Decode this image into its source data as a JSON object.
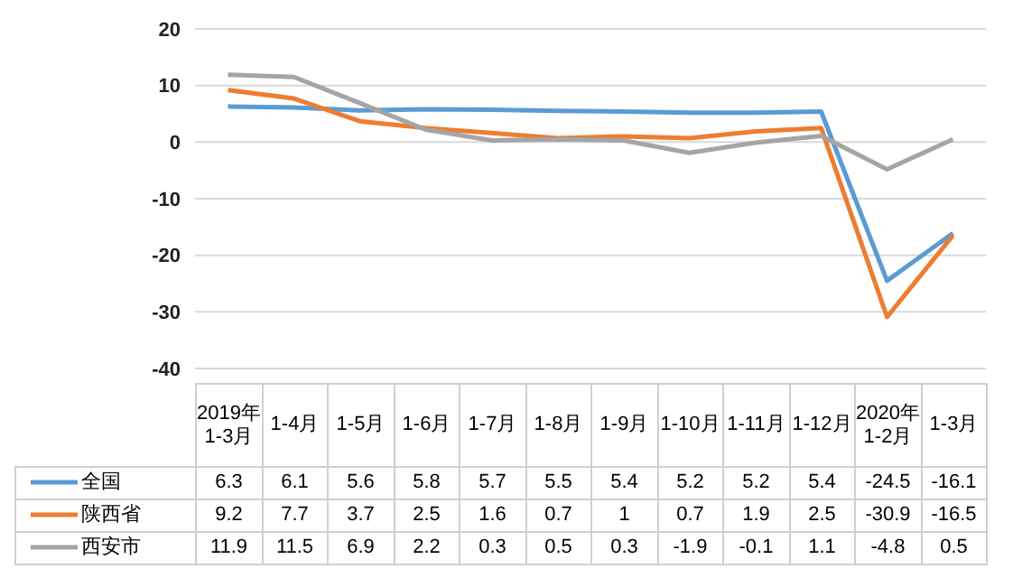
{
  "chart_data": {
    "type": "line",
    "categories": [
      "2019年1-3月",
      "1-4月",
      "1-5月",
      "1-6月",
      "1-7月",
      "1-8月",
      "1-9月",
      "1-10月",
      "1-11月",
      "1-12月",
      "2020年1-2月",
      "1-3月"
    ],
    "series": [
      {
        "name": "全国",
        "color": "#5b9bd5",
        "values": [
          6.3,
          6.1,
          5.6,
          5.8,
          5.7,
          5.5,
          5.4,
          5.2,
          5.2,
          5.4,
          -24.5,
          -16.1
        ]
      },
      {
        "name": "陕西省",
        "color": "#ed7d31",
        "values": [
          9.2,
          7.7,
          3.7,
          2.5,
          1.6,
          0.7,
          1,
          0.7,
          1.9,
          2.5,
          -30.9,
          -16.5
        ]
      },
      {
        "name": "西安市",
        "color": "#a5a5a5",
        "values": [
          11.9,
          11.5,
          6.9,
          2.2,
          0.3,
          0.5,
          0.3,
          -1.9,
          -0.1,
          1.1,
          -4.8,
          0.5
        ]
      }
    ],
    "ylim": [
      -40,
      20
    ],
    "yticks": [
      -40,
      -30,
      -20,
      -10,
      0,
      10,
      20
    ],
    "grid": "y",
    "legend": "bottom",
    "data_labels": true,
    "marker": "none",
    "line_style": "solid"
  }
}
